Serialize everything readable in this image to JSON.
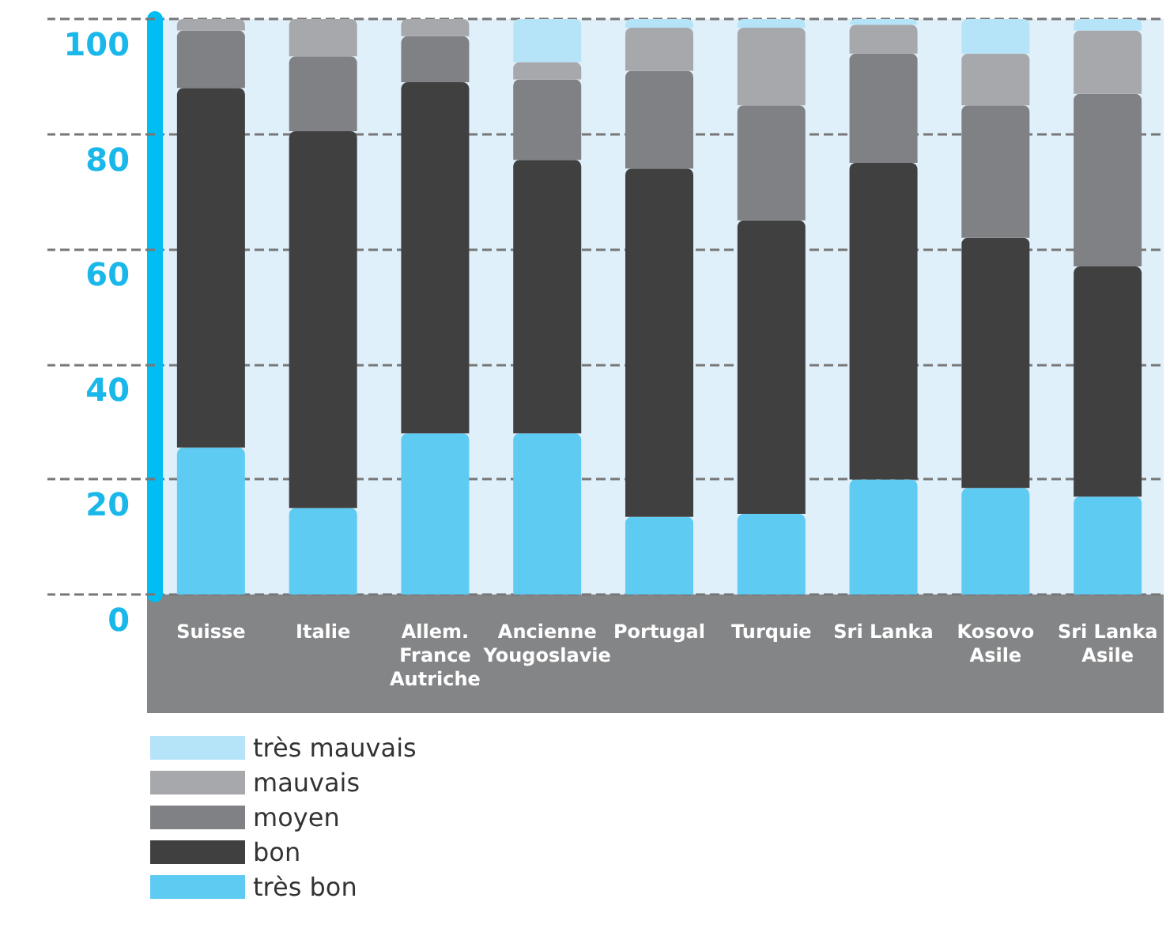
{
  "chart_data": {
    "type": "bar",
    "stacked": true,
    "categories": [
      "Suisse",
      "Italie",
      "Allem.\nFrance\nAutriche",
      "Ancienne\nYougoslavie",
      "Portugal",
      "Turquie",
      "Sri Lanka",
      "Kosovo\nAsile",
      "Sri Lanka\nAsile"
    ],
    "series": [
      {
        "name": "très bon",
        "color": "#5ecbf3",
        "values": [
          25.5,
          15,
          28,
          28,
          13.5,
          14,
          20,
          18.5,
          17
        ]
      },
      {
        "name": "bon",
        "color": "#404040",
        "values": [
          62.5,
          65.5,
          61,
          47.5,
          60.5,
          51,
          55,
          43.5,
          40
        ]
      },
      {
        "name": "moyen",
        "color": "#808184",
        "values": [
          10,
          13,
          8,
          14,
          17,
          20,
          19,
          23,
          30
        ]
      },
      {
        "name": "mauvais",
        "color": "#a7a8ab",
        "values": [
          2,
          6.5,
          3,
          3,
          7.5,
          13.5,
          5,
          9,
          11
        ]
      },
      {
        "name": "très mauvais",
        "color": "#b5e4f9",
        "values": [
          0,
          0,
          0,
          7.5,
          1.5,
          1.5,
          1,
          6,
          2
        ]
      }
    ],
    "ylim": [
      0,
      100
    ],
    "yticks": [
      0,
      20,
      40,
      60,
      80,
      100
    ],
    "grid": "y",
    "legend": "bottom left"
  }
}
